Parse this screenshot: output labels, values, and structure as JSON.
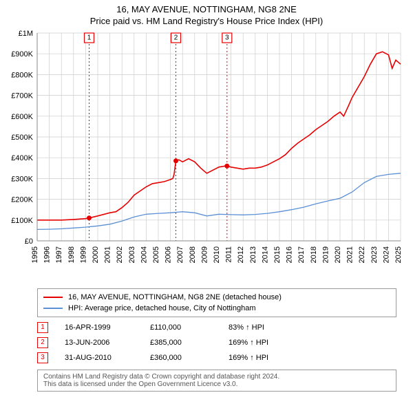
{
  "header": {
    "title": "16, MAY AVENUE, NOTTINGHAM, NG8 2NE",
    "subtitle": "Price paid vs. HM Land Registry's House Price Index (HPI)"
  },
  "chart": {
    "background_color": "#ffffff",
    "grid_color": "#cccccc",
    "tick_fontsize": 11,
    "x": {
      "min": 1995,
      "max": 2025,
      "tick_step": 1,
      "labels": [
        "1995",
        "1996",
        "1997",
        "1998",
        "1999",
        "2000",
        "2001",
        "2002",
        "2003",
        "2004",
        "2005",
        "2006",
        "2007",
        "2008",
        "2009",
        "2010",
        "2011",
        "2012",
        "2013",
        "2014",
        "2015",
        "2016",
        "2017",
        "2018",
        "2019",
        "2020",
        "2021",
        "2022",
        "2023",
        "2024",
        "2025"
      ]
    },
    "y": {
      "min": 0,
      "max": 1000000,
      "tick_step": 100000,
      "labels": [
        "£0",
        "£100K",
        "£200K",
        "£300K",
        "£400K",
        "£500K",
        "£600K",
        "£700K",
        "£800K",
        "£900K",
        "£1M"
      ]
    },
    "series": [
      {
        "id": "property",
        "color": "#e60000",
        "line_width": 1.6,
        "data": [
          [
            1995.0,
            100000
          ],
          [
            1996.0,
            100000
          ],
          [
            1997.0,
            100000
          ],
          [
            1998.0,
            103000
          ],
          [
            1999.0,
            107000
          ],
          [
            1999.29,
            110000
          ],
          [
            2000.0,
            120000
          ],
          [
            2001.0,
            135000
          ],
          [
            2001.5,
            140000
          ],
          [
            2002.0,
            160000
          ],
          [
            2002.5,
            185000
          ],
          [
            2003.0,
            220000
          ],
          [
            2003.5,
            240000
          ],
          [
            2004.0,
            260000
          ],
          [
            2004.5,
            275000
          ],
          [
            2005.0,
            280000
          ],
          [
            2005.5,
            285000
          ],
          [
            2006.0,
            295000
          ],
          [
            2006.2,
            300000
          ],
          [
            2006.3,
            320000
          ],
          [
            2006.45,
            385000
          ],
          [
            2006.7,
            390000
          ],
          [
            2007.0,
            380000
          ],
          [
            2007.5,
            395000
          ],
          [
            2008.0,
            380000
          ],
          [
            2008.5,
            350000
          ],
          [
            2009.0,
            325000
          ],
          [
            2009.5,
            340000
          ],
          [
            2010.0,
            355000
          ],
          [
            2010.5,
            360000
          ],
          [
            2010.67,
            360000
          ],
          [
            2011.0,
            355000
          ],
          [
            2011.5,
            350000
          ],
          [
            2012.0,
            345000
          ],
          [
            2012.5,
            350000
          ],
          [
            2013.0,
            350000
          ],
          [
            2013.5,
            355000
          ],
          [
            2014.0,
            365000
          ],
          [
            2014.5,
            380000
          ],
          [
            2015.0,
            395000
          ],
          [
            2015.5,
            415000
          ],
          [
            2016.0,
            445000
          ],
          [
            2016.5,
            470000
          ],
          [
            2017.0,
            490000
          ],
          [
            2017.5,
            510000
          ],
          [
            2018.0,
            535000
          ],
          [
            2018.5,
            555000
          ],
          [
            2019.0,
            575000
          ],
          [
            2019.5,
            600000
          ],
          [
            2020.0,
            620000
          ],
          [
            2020.3,
            600000
          ],
          [
            2020.7,
            650000
          ],
          [
            2021.0,
            690000
          ],
          [
            2021.5,
            740000
          ],
          [
            2022.0,
            790000
          ],
          [
            2022.5,
            850000
          ],
          [
            2023.0,
            900000
          ],
          [
            2023.5,
            910000
          ],
          [
            2024.0,
            895000
          ],
          [
            2024.3,
            830000
          ],
          [
            2024.6,
            870000
          ],
          [
            2025.0,
            850000
          ]
        ]
      },
      {
        "id": "hpi",
        "color": "#5b8fd6",
        "line_width": 1.3,
        "data": [
          [
            1995.0,
            55000
          ],
          [
            1996.0,
            56000
          ],
          [
            1997.0,
            58000
          ],
          [
            1998.0,
            62000
          ],
          [
            1999.0,
            66000
          ],
          [
            2000.0,
            72000
          ],
          [
            2001.0,
            80000
          ],
          [
            2002.0,
            95000
          ],
          [
            2003.0,
            115000
          ],
          [
            2004.0,
            128000
          ],
          [
            2005.0,
            132000
          ],
          [
            2006.0,
            135000
          ],
          [
            2007.0,
            140000
          ],
          [
            2008.0,
            135000
          ],
          [
            2009.0,
            120000
          ],
          [
            2010.0,
            128000
          ],
          [
            2011.0,
            126000
          ],
          [
            2012.0,
            125000
          ],
          [
            2013.0,
            127000
          ],
          [
            2014.0,
            132000
          ],
          [
            2015.0,
            140000
          ],
          [
            2016.0,
            150000
          ],
          [
            2017.0,
            162000
          ],
          [
            2018.0,
            178000
          ],
          [
            2019.0,
            192000
          ],
          [
            2020.0,
            205000
          ],
          [
            2021.0,
            235000
          ],
          [
            2022.0,
            280000
          ],
          [
            2023.0,
            310000
          ],
          [
            2024.0,
            320000
          ],
          [
            2025.0,
            325000
          ]
        ]
      }
    ],
    "transactions": [
      {
        "n": "1",
        "year": 1999.29,
        "price": 110000,
        "marker_color": "#e60000",
        "line_color": "#e60000"
      },
      {
        "n": "2",
        "year": 2006.45,
        "price": 385000,
        "marker_color": "#e60000",
        "line_color": "#e60000"
      },
      {
        "n": "3",
        "year": 2010.67,
        "price": 360000,
        "marker_color": "#e60000",
        "line_color": "#e60000"
      }
    ]
  },
  "legend": {
    "items": [
      {
        "color": "#e60000",
        "label": "16, MAY AVENUE, NOTTINGHAM, NG8 2NE (detached house)"
      },
      {
        "color": "#5b8fd6",
        "label": "HPI: Average price, detached house, City of Nottingham"
      }
    ]
  },
  "tx_table": {
    "rows": [
      {
        "n": "1",
        "color": "#e60000",
        "date": "16-APR-1999",
        "price": "£110,000",
        "ratio": "83% ↑ HPI"
      },
      {
        "n": "2",
        "color": "#e60000",
        "date": "13-JUN-2006",
        "price": "£385,000",
        "ratio": "169% ↑ HPI"
      },
      {
        "n": "3",
        "color": "#e60000",
        "date": "31-AUG-2010",
        "price": "£360,000",
        "ratio": "169% ↑ HPI"
      }
    ]
  },
  "footer": {
    "line1": "Contains HM Land Registry data © Crown copyright and database right 2024.",
    "line2": "This data is licensed under the Open Government Licence v3.0."
  }
}
